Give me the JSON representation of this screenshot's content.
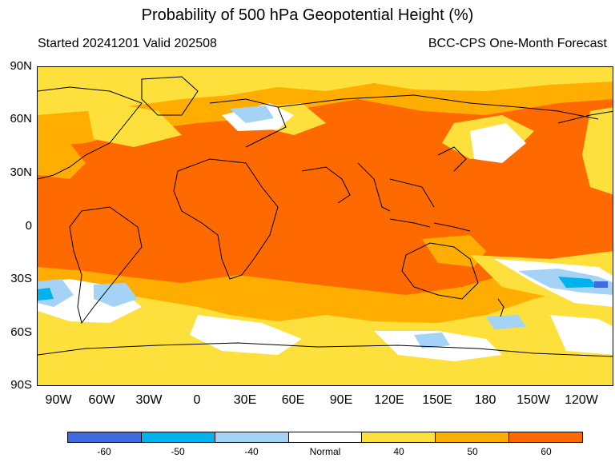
{
  "title": "Probability of 500 hPa Geopotential Height (%)",
  "subtitle_left": "Started 20241201  Valid 202508",
  "subtitle_right": "BCC-CPS One-Month Forecast",
  "lat_labels": [
    "90N",
    "60N",
    "30N",
    "0",
    "30S",
    "60S",
    "90S"
  ],
  "lon_labels": [
    "90W",
    "60W",
    "30W",
    "0",
    "30E",
    "60E",
    "90E",
    "120E",
    "150E",
    "180",
    "150W",
    "120W"
  ],
  "legend": {
    "labels": [
      "-60",
      "-50",
      "-40",
      "Normal",
      "40",
      "50",
      "60"
    ],
    "colors": [
      "#4169e1",
      "#00b2ee",
      "#a4d3f5",
      "#ffffff",
      "#fde03b",
      "#ffad00",
      "#ff6a00"
    ]
  }
}
